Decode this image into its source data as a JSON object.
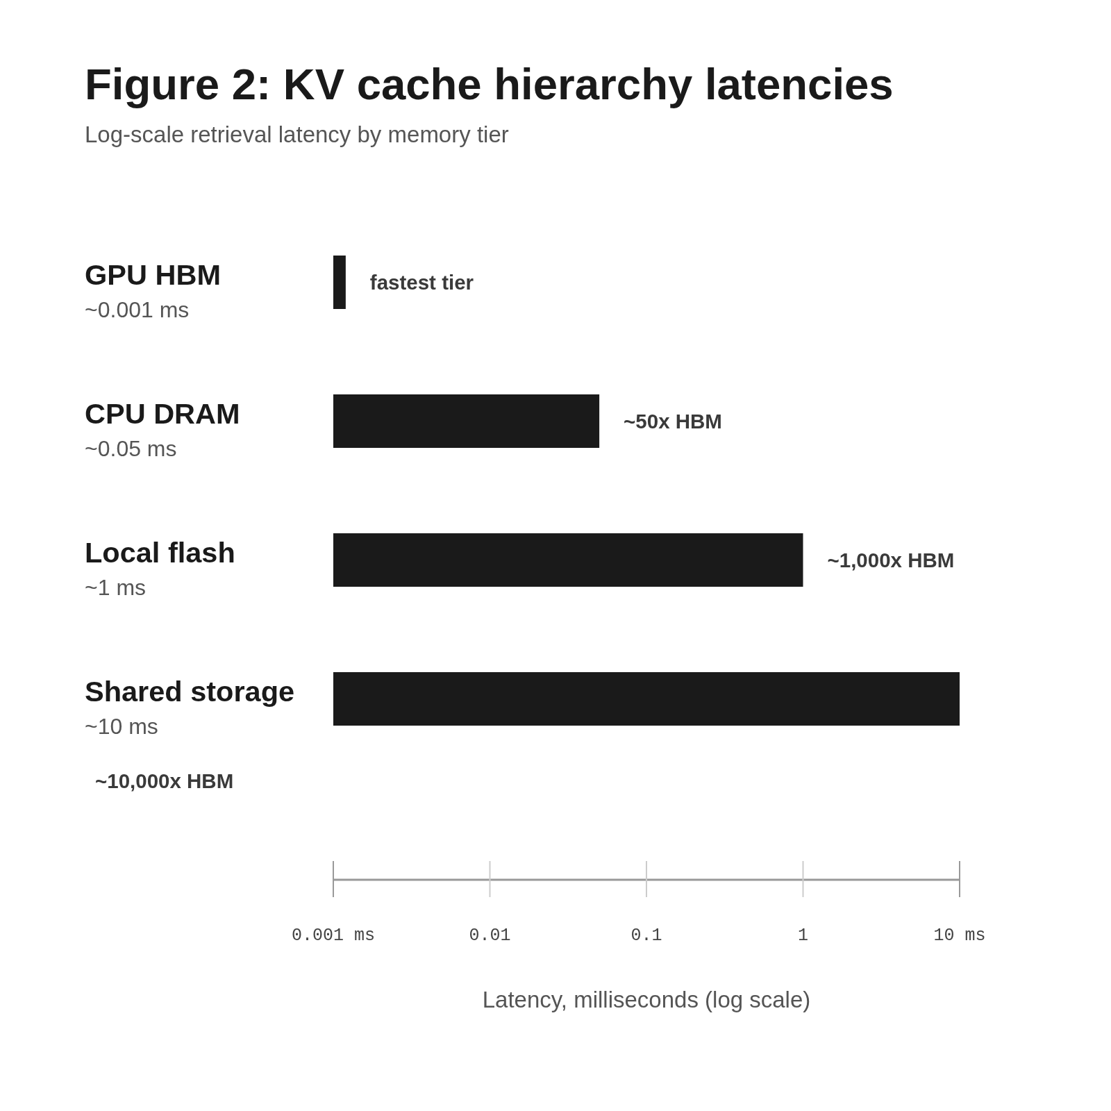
{
  "chart_data": {
    "type": "bar",
    "orientation": "horizontal",
    "title": "Figure 2: KV cache hierarchy latencies",
    "subtitle": "Log-scale retrieval latency by memory tier",
    "xlabel": "Latency, milliseconds (log scale)",
    "categories": [
      "GPU HBM",
      "CPU DRAM",
      "Local flash",
      "Shared storage"
    ],
    "values": [
      0.0012,
      0.05,
      1,
      10
    ],
    "color": "#1a1a1a",
    "log": "x",
    "xlim": [
      0.001,
      10
    ],
    "xticks": [
      {
        "value": 0.001,
        "label": "0.001 ms"
      },
      0.01,
      0.1,
      1,
      {
        "value": 10,
        "label": "10 ms"
      }
    ],
    "annotations": [
      "~0.001 ms",
      "fastest tier",
      "~0.05 ms",
      "~50x HBM",
      "~1 ms",
      "~1,000x HBM",
      "~10 ms",
      "~10,000x HBM"
    ]
  }
}
